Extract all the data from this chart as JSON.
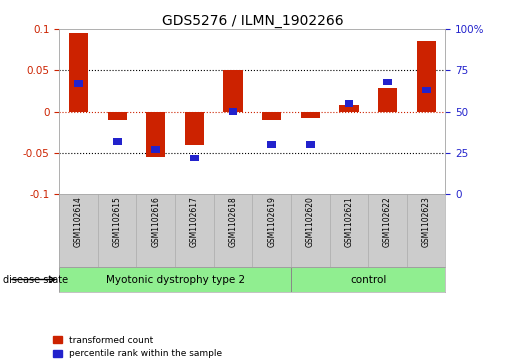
{
  "title": "GDS5276 / ILMN_1902266",
  "samples": [
    "GSM1102614",
    "GSM1102615",
    "GSM1102616",
    "GSM1102617",
    "GSM1102618",
    "GSM1102619",
    "GSM1102620",
    "GSM1102621",
    "GSM1102622",
    "GSM1102623"
  ],
  "transformed_count": [
    0.095,
    -0.01,
    -0.055,
    -0.04,
    0.051,
    -0.01,
    -0.008,
    0.008,
    0.028,
    0.086
  ],
  "percentile_rank": [
    0.67,
    0.32,
    0.27,
    0.22,
    0.5,
    0.3,
    0.3,
    0.55,
    0.68,
    0.63
  ],
  "groups": [
    {
      "label": "Myotonic dystrophy type 2",
      "start": 0,
      "end": 6,
      "color": "#90EE90"
    },
    {
      "label": "control",
      "start": 6,
      "end": 10,
      "color": "#90EE90"
    }
  ],
  "ylim": [
    -0.1,
    0.1
  ],
  "yticks_left": [
    -0.1,
    -0.05,
    0.0,
    0.05,
    0.1
  ],
  "yticks_right": [
    0,
    25,
    50,
    75,
    100
  ],
  "ytick_right_labels": [
    "0",
    "25",
    "50",
    "75",
    "100%"
  ],
  "bar_color_red": "#CC2200",
  "bar_color_blue": "#2222CC",
  "bar_width": 0.5,
  "label_area_color": "#cccccc",
  "dotted_line_color": "#000000",
  "zero_line_color": "#CC2200",
  "group_separator": 6,
  "n_samples": 10
}
